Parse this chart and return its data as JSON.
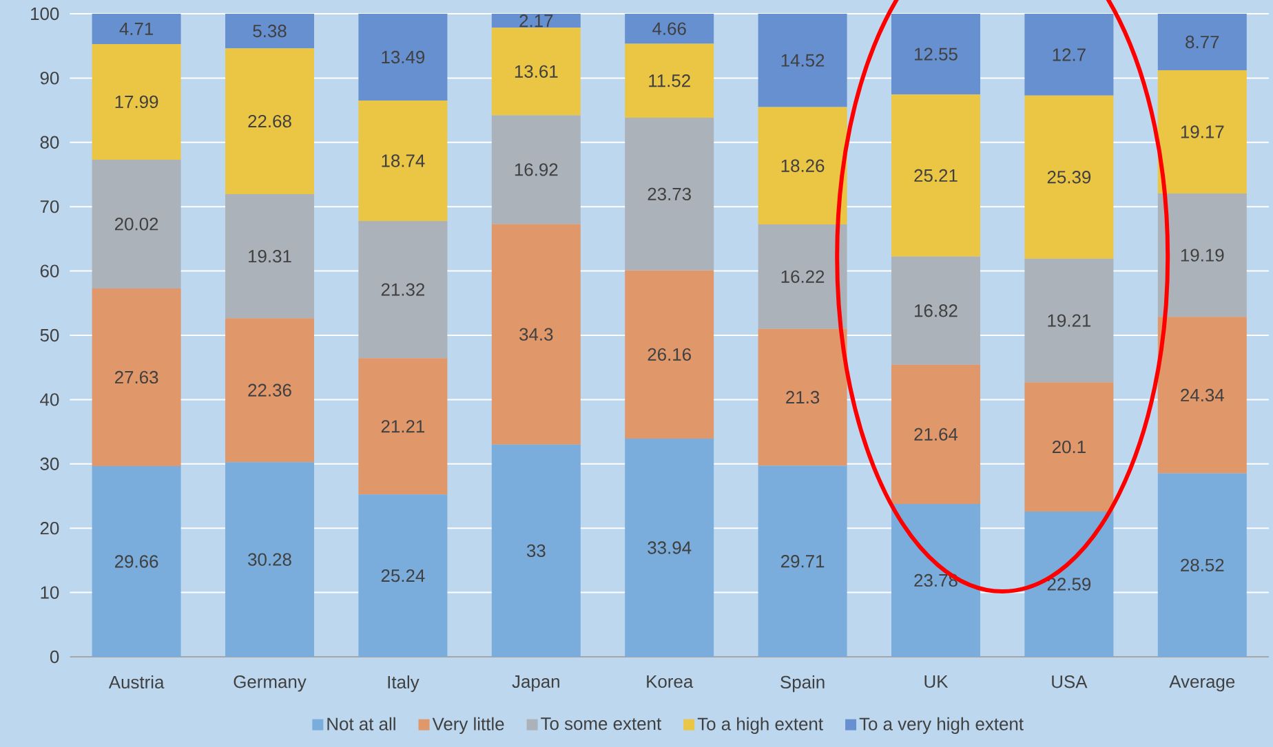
{
  "chart_data": {
    "type": "bar",
    "stacked": true,
    "data_labels": true,
    "grid": "y",
    "legend": "bottom",
    "categories": [
      "Austria",
      "Germany",
      "Italy",
      "Japan",
      "Korea",
      "Spain",
      "UK",
      "USA",
      "Average"
    ],
    "series": [
      {
        "name": "Not at all",
        "color": "#7aacdc",
        "values": [
          29.66,
          30.28,
          25.24,
          33,
          33.94,
          29.71,
          23.78,
          22.59,
          28.52
        ]
      },
      {
        "name": "Very little",
        "color": "#e0976a",
        "values": [
          27.63,
          22.36,
          21.21,
          34.3,
          26.16,
          21.3,
          21.64,
          20.1,
          24.34
        ]
      },
      {
        "name": "To some extent",
        "color": "#abb2ba",
        "values": [
          20.02,
          19.31,
          21.32,
          16.92,
          23.73,
          16.22,
          16.82,
          19.21,
          19.19
        ]
      },
      {
        "name": "To a high extent",
        "color": "#ebc544",
        "values": [
          17.99,
          22.68,
          18.74,
          13.61,
          11.52,
          18.26,
          25.21,
          25.39,
          19.17
        ]
      },
      {
        "name": "To a very high extent",
        "color": "#6690d0",
        "values": [
          4.71,
          5.38,
          13.49,
          2.17,
          4.66,
          14.52,
          12.55,
          12.7,
          8.77
        ]
      }
    ],
    "ylim": [
      0,
      100
    ],
    "yticks": [
      0,
      10,
      20,
      30,
      40,
      50,
      60,
      70,
      80,
      90,
      100
    ]
  }
}
